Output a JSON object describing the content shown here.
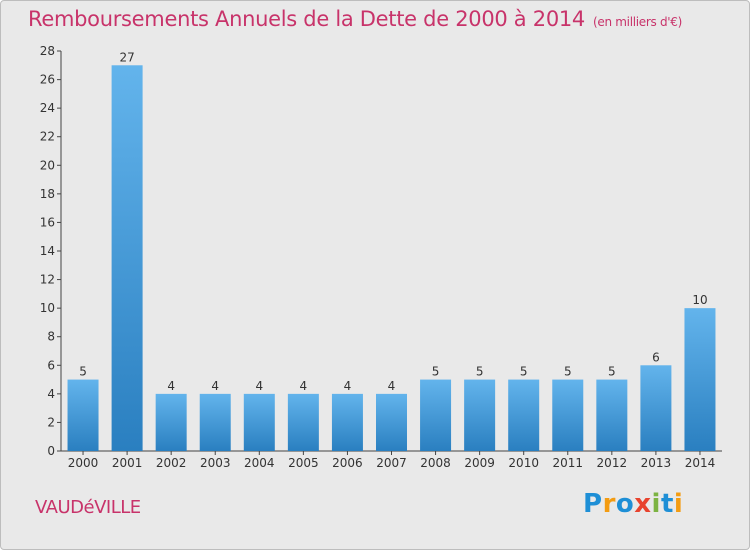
{
  "title": {
    "main": "Remboursements Annuels de la Dette de 2000 à 2014",
    "unit": "(en milliers d'€)"
  },
  "place": "VAUDéVILLE",
  "logo": {
    "letters": [
      "P",
      "r",
      "o",
      "x",
      "i",
      "t",
      "i"
    ],
    "colors": [
      "#1e8fd6",
      "#f39c12",
      "#1e8fd6",
      "#e8432e",
      "#7cb342",
      "#1e8fd6",
      "#f39c12"
    ]
  },
  "colors": {
    "title": "#c8336a",
    "bar_top": "#63b4ec",
    "bar_bottom": "#2a7fc0",
    "background": "#e9e9e9"
  },
  "chart_data": {
    "type": "bar",
    "title": "Remboursements Annuels de la Dette de 2000 à 2014",
    "xlabel": "",
    "ylabel": "",
    "categories": [
      "2000",
      "2001",
      "2002",
      "2003",
      "2004",
      "2005",
      "2006",
      "2007",
      "2008",
      "2009",
      "2010",
      "2011",
      "2012",
      "2013",
      "2014"
    ],
    "values": [
      5,
      27,
      4,
      4,
      4,
      4,
      4,
      4,
      5,
      5,
      5,
      5,
      5,
      6,
      10
    ],
    "data_labels": [
      "5",
      "27",
      "4",
      "4",
      "4",
      "4",
      "4",
      "4",
      "5",
      "5",
      "5",
      "5",
      "5",
      "6",
      "10"
    ],
    "ylim": [
      0,
      28
    ],
    "yticks": [
      0,
      2,
      4,
      6,
      8,
      10,
      12,
      14,
      16,
      18,
      20,
      22,
      24,
      26,
      28
    ],
    "grid": false,
    "legend": "none"
  }
}
